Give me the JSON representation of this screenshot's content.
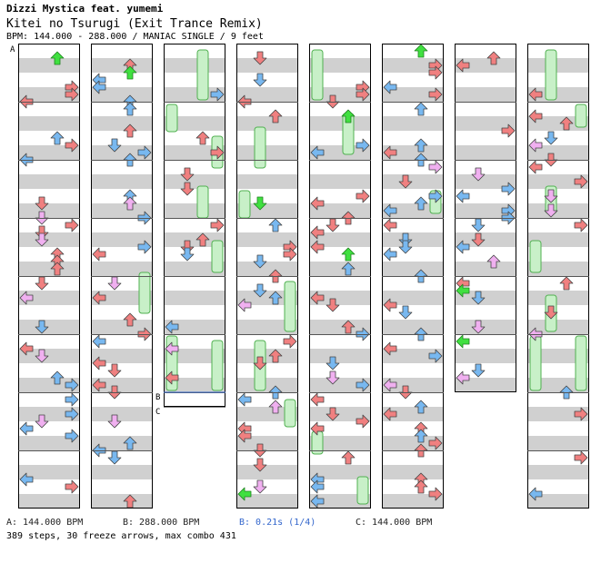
{
  "header": {
    "artist": "Dizzi Mystica feat. yumemi",
    "title": "Kitei no Tsurugi (Exit Trance Remix)",
    "info": "BPM: 144.000 - 288.000 / MANIAC SINGLE / 9 feet"
  },
  "markers": {
    "a": "A",
    "b": "B",
    "c": "C"
  },
  "legend": {
    "a": "A: 144.000 BPM",
    "b": "B: 288.000 BPM",
    "stop": "B: 0.21s (1/4)",
    "c": "C: 144.000 BPM"
  },
  "stats": "389 steps, 30 freeze arrows, max combo 431",
  "colors": {
    "red": "#f08080",
    "blue": "#78b8f0",
    "pink": "#f0b0f0",
    "green": "#40e040",
    "freeze_fill": "#c8f0c8",
    "freeze_stroke": "#50b050",
    "stripe": "#d0d0d0"
  }
}
